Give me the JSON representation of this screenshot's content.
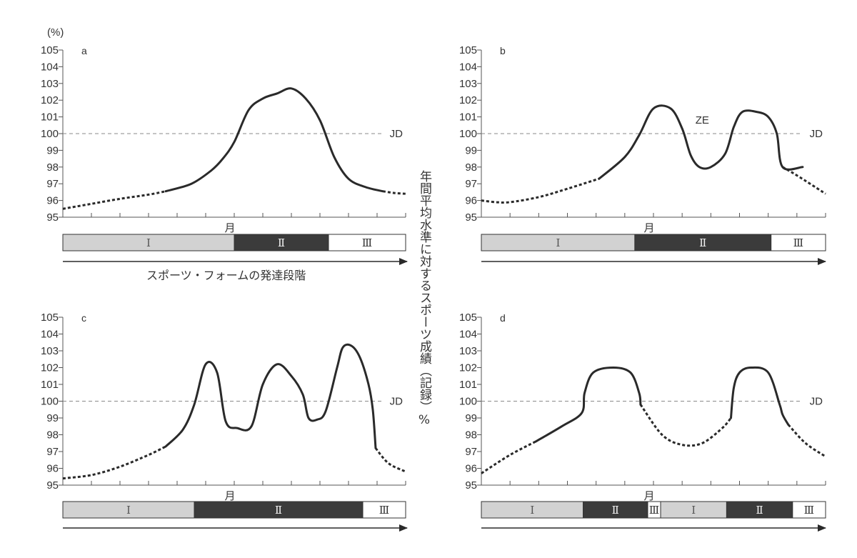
{
  "figure": {
    "y_unit": "(%)",
    "vertical_label": "年間平均水準に対するスポーツ成績（記録）%",
    "stage_caption": "スポーツ・フォームの発達段階",
    "x_label": "月",
    "reference_label": "JD"
  },
  "chart_data": [
    {
      "type": "line",
      "panel": "a",
      "ylim": [
        95,
        105
      ],
      "yticks": [
        95,
        96,
        97,
        98,
        99,
        100,
        101,
        102,
        103,
        104,
        105
      ],
      "xlabel": "月",
      "ylabel": "(%)",
      "reference_line": {
        "y": 100,
        "label": "JD",
        "style": "dashed"
      },
      "x_ticks": 12,
      "series": [
        {
          "style": "dotted",
          "x": [
            0,
            1,
            2,
            3,
            3.6
          ],
          "y": [
            95.5,
            95.8,
            96.1,
            96.35,
            96.55
          ]
        },
        {
          "style": "solid",
          "x": [
            3.6,
            4.5,
            5.2,
            5.6,
            6,
            6.5,
            7,
            7.5,
            8,
            8.5,
            9,
            9.5,
            10,
            10.6,
            11.2
          ],
          "y": [
            96.55,
            97.0,
            97.8,
            98.5,
            99.5,
            101.4,
            102.1,
            102.4,
            102.7,
            102.1,
            100.8,
            98.6,
            97.3,
            96.8,
            96.55
          ]
        },
        {
          "style": "dotted",
          "x": [
            11.2,
            11.6,
            12
          ],
          "y": [
            96.55,
            96.45,
            96.4
          ]
        }
      ],
      "phases": [
        {
          "label": "Ⅰ",
          "shade": "light",
          "span": [
            0,
            6
          ]
        },
        {
          "label": "Ⅱ",
          "shade": "dark",
          "span": [
            6,
            9.3
          ]
        },
        {
          "label": "Ⅲ",
          "shade": "white",
          "span": [
            9.3,
            12
          ]
        }
      ]
    },
    {
      "type": "line",
      "panel": "b",
      "ylim": [
        95,
        105
      ],
      "yticks": [
        95,
        96,
        97,
        98,
        99,
        100,
        101,
        102,
        103,
        104,
        105
      ],
      "xlabel": "月",
      "ylabel": "",
      "reference_line": {
        "y": 100,
        "label": "JD",
        "style": "dashed"
      },
      "annotation": "ZE",
      "x_ticks": 12,
      "series": [
        {
          "style": "dotted",
          "x": [
            0,
            0.5,
            1,
            2,
            3,
            4.1
          ],
          "y": [
            96.0,
            95.9,
            95.9,
            96.2,
            96.7,
            97.3
          ]
        },
        {
          "style": "solid",
          "x": [
            4.1,
            5,
            5.5,
            6,
            6.6,
            7,
            7.3,
            7.6,
            8,
            8.5,
            8.8,
            9.1,
            9.6,
            10,
            10.3,
            10.5,
            11.2
          ],
          "y": [
            97.3,
            98.6,
            99.9,
            101.5,
            101.5,
            100.3,
            98.7,
            98.0,
            98.0,
            98.8,
            100.4,
            101.3,
            101.3,
            101.0,
            100.0,
            98.0,
            98.0
          ]
        },
        {
          "style": "dotted",
          "x": [
            10.5,
            11,
            12
          ],
          "y": [
            98.0,
            97.5,
            96.4
          ]
        }
      ],
      "phases": [
        {
          "label": "Ⅰ",
          "shade": "light",
          "span": [
            0,
            5.35
          ]
        },
        {
          "label": "Ⅱ",
          "shade": "dark",
          "span": [
            5.35,
            10.1
          ]
        },
        {
          "label": "Ⅲ",
          "shade": "white",
          "span": [
            10.1,
            12
          ]
        }
      ]
    },
    {
      "type": "line",
      "panel": "c",
      "ylim": [
        95,
        105
      ],
      "yticks": [
        95,
        96,
        97,
        98,
        99,
        100,
        101,
        102,
        103,
        104,
        105
      ],
      "xlabel": "月",
      "ylabel": "",
      "reference_line": {
        "y": 100,
        "label": "JD",
        "style": "dashed"
      },
      "x_ticks": 12,
      "series": [
        {
          "style": "dotted",
          "x": [
            0,
            1,
            2,
            3,
            3.6
          ],
          "y": [
            95.4,
            95.6,
            96.1,
            96.8,
            97.3
          ]
        },
        {
          "style": "solid",
          "x": [
            3.6,
            4.2,
            4.6,
            5.0,
            5.4,
            5.7,
            6.1,
            6.6,
            7.0,
            7.5,
            8.0,
            8.4,
            8.6,
            8.9,
            9.2,
            9.6,
            9.8,
            10.1,
            10.4,
            10.7,
            10.85,
            10.95
          ],
          "y": [
            97.3,
            98.3,
            99.8,
            102.2,
            101.7,
            98.8,
            98.4,
            98.5,
            101.0,
            102.2,
            101.5,
            100.4,
            99.0,
            98.9,
            99.4,
            102.0,
            103.2,
            103.3,
            102.6,
            101.0,
            99.5,
            97.2
          ]
        },
        {
          "style": "dotted",
          "x": [
            10.95,
            11.4,
            12
          ],
          "y": [
            97.2,
            96.3,
            95.8
          ]
        }
      ],
      "phases": [
        {
          "label": "Ⅰ",
          "shade": "light",
          "span": [
            0,
            4.6
          ]
        },
        {
          "label": "Ⅱ",
          "shade": "dark",
          "span": [
            4.6,
            10.5
          ]
        },
        {
          "label": "Ⅲ",
          "shade": "white",
          "span": [
            10.5,
            12
          ]
        }
      ]
    },
    {
      "type": "line",
      "panel": "d",
      "ylim": [
        95,
        105
      ],
      "yticks": [
        95,
        96,
        97,
        98,
        99,
        100,
        101,
        102,
        103,
        104,
        105
      ],
      "xlabel": "月",
      "ylabel": "",
      "reference_line": {
        "y": 100,
        "label": "JD",
        "style": "dashed"
      },
      "x_ticks": 12,
      "series": [
        {
          "style": "dotted",
          "x": [
            0,
            1,
            1.9
          ],
          "y": [
            95.7,
            96.8,
            97.6
          ]
        },
        {
          "style": "solid",
          "x": [
            1.9,
            2.8,
            3.5,
            3.6,
            3.9,
            4.6,
            5.2,
            5.5,
            5.55
          ],
          "y": [
            97.6,
            98.5,
            99.3,
            100.5,
            101.7,
            102.0,
            101.7,
            100.5,
            99.8
          ]
        },
        {
          "style": "dotted",
          "x": [
            5.55,
            6.3,
            7.0,
            7.7,
            8.4,
            8.7
          ],
          "y": [
            99.8,
            98.0,
            97.4,
            97.5,
            98.4,
            99.0
          ]
        },
        {
          "style": "solid",
          "x": [
            8.7,
            8.8,
            9.0,
            9.4,
            10.0,
            10.4,
            10.5,
            10.7
          ],
          "y": [
            99.0,
            100.8,
            101.7,
            102.0,
            101.7,
            99.8,
            99.2,
            98.6
          ]
        },
        {
          "style": "dotted",
          "x": [
            10.7,
            11.3,
            12
          ],
          "y": [
            98.6,
            97.5,
            96.7
          ]
        }
      ],
      "phases": [
        {
          "label": "Ⅰ",
          "shade": "light",
          "span": [
            0,
            3.55
          ]
        },
        {
          "label": "Ⅱ",
          "shade": "dark",
          "span": [
            3.55,
            5.8
          ]
        },
        {
          "label": "Ⅲ",
          "shade": "white",
          "span": [
            5.8,
            6.25
          ]
        },
        {
          "label": "Ⅰ",
          "shade": "light",
          "span": [
            6.25,
            8.55
          ]
        },
        {
          "label": "Ⅱ",
          "shade": "dark",
          "span": [
            8.55,
            10.85
          ]
        },
        {
          "label": "Ⅲ",
          "shade": "white",
          "span": [
            10.85,
            12
          ]
        }
      ]
    }
  ]
}
